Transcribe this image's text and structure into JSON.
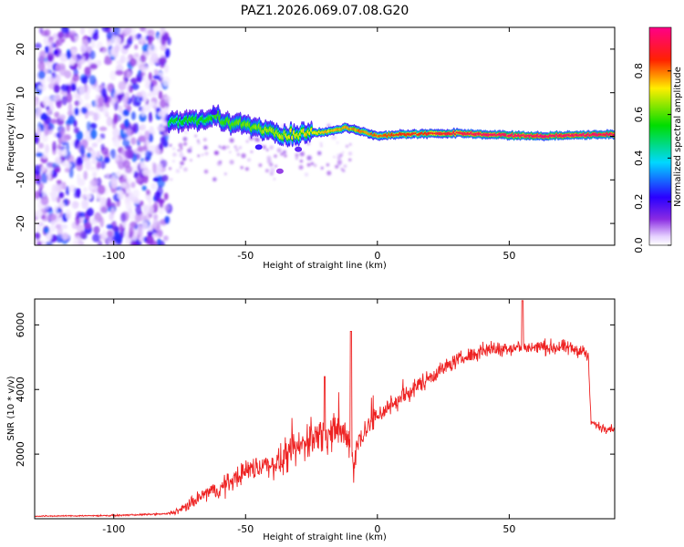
{
  "title": "PAZ1.2026.069.07.08.G20",
  "colors": {
    "snr_line": "#ee2222",
    "axis": "#000000",
    "background": "#ffffff"
  },
  "chart_data": [
    {
      "type": "heatmap",
      "name": "spectrogram",
      "xlabel": "Height of straight line (km)",
      "ylabel": "Frequency (Hz)",
      "xlim": [
        -130,
        90
      ],
      "ylim": [
        -25,
        25
      ],
      "x_ticks": [
        -100,
        -50,
        0,
        50
      ],
      "y_ticks": [
        20,
        10,
        0,
        -10,
        -20
      ],
      "x_tick_labels": [
        "-100",
        "-50",
        "0",
        "50"
      ],
      "y_tick_labels": [
        "20",
        "10",
        "0",
        "-10",
        "-20"
      ],
      "colorbar": {
        "label": "Normalized spectral amplitude",
        "range": [
          0,
          1
        ],
        "ticks": [
          0.0,
          0.2,
          0.4,
          0.6,
          0.8
        ],
        "tick_labels": [
          "0.0",
          "0.2",
          "0.4",
          "0.6",
          "0.8"
        ],
        "colormap": "rainbow (white-violet-blue-cyan-green-yellow-red-magenta)"
      },
      "features": {
        "noise_region_x": [
          -130,
          -79
        ],
        "noise_amplitude_range": [
          0.02,
          0.3
        ],
        "signal_track": [
          {
            "x": -79,
            "freq": 3.0
          },
          {
            "x": -70,
            "freq": 3.5
          },
          {
            "x": -62,
            "freq": 4.5
          },
          {
            "x": -55,
            "freq": 3.0
          },
          {
            "x": -45,
            "freq": 2.0
          },
          {
            "x": -35,
            "freq": 0.0
          },
          {
            "x": -28,
            "freq": 0.5
          },
          {
            "x": -20,
            "freq": 1.0
          },
          {
            "x": -12,
            "freq": 2.0
          },
          {
            "x": -5,
            "freq": 1.0
          },
          {
            "x": 0,
            "freq": 0.0
          },
          {
            "x": 10,
            "freq": 0.5
          },
          {
            "x": 30,
            "freq": 0.7
          },
          {
            "x": 60,
            "freq": 0.0
          },
          {
            "x": 90,
            "freq": 0.5
          }
        ]
      }
    },
    {
      "type": "line",
      "name": "snr",
      "xlabel": "Height of straight line (km)",
      "ylabel": "SNR (10 * v/v)",
      "xlim": [
        -130,
        90
      ],
      "ylim": [
        0,
        6800
      ],
      "x_ticks": [
        -100,
        -50,
        0,
        50
      ],
      "y_ticks": [
        2000,
        4000,
        6000
      ],
      "x_tick_labels": [
        "-100",
        "-50",
        "0",
        "50"
      ],
      "y_tick_labels": [
        "2000",
        "4000",
        "6000"
      ],
      "envelope": {
        "x": [
          -130,
          -100,
          -80,
          -75,
          -70,
          -65,
          -60,
          -55,
          -50,
          -45,
          -40,
          -35,
          -30,
          -25,
          -20,
          -15,
          -12,
          -10,
          -9,
          -8,
          -6,
          -4,
          -2,
          0,
          10,
          20,
          30,
          40,
          50,
          60,
          70,
          78,
          80,
          81,
          85,
          90
        ],
        "y": [
          80,
          100,
          150,
          250,
          500,
          800,
          900,
          1200,
          1500,
          1600,
          1700,
          1800,
          2200,
          2500,
          2600,
          2700,
          2600,
          2400,
          1500,
          2200,
          2600,
          2800,
          3000,
          3200,
          3800,
          4400,
          4900,
          5200,
          5300,
          5300,
          5300,
          5200,
          5000,
          3000,
          2800,
          2800
        ]
      },
      "noise_amplitude": [
        [
          -130,
          30
        ],
        [
          -80,
          40
        ],
        [
          -75,
          200
        ],
        [
          -60,
          450
        ],
        [
          -40,
          600
        ],
        [
          -25,
          900
        ],
        [
          -20,
          900
        ],
        [
          -10,
          700
        ],
        [
          0,
          500
        ],
        [
          30,
          350
        ],
        [
          78,
          350
        ],
        [
          81,
          200
        ],
        [
          90,
          200
        ]
      ]
    }
  ]
}
